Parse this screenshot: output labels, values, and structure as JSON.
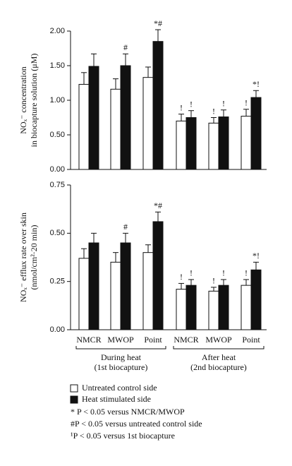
{
  "chart_data": [
    {
      "type": "bar",
      "y_label": [
        "NOₓ⁻ concentration",
        "in biocapture solution (μM)"
      ],
      "ylim": [
        0,
        2
      ],
      "yticks": [
        {
          "value": 0,
          "label": "0.00"
        },
        {
          "value": 0.5,
          "label": "0.50"
        },
        {
          "value": 1,
          "label": "1.00"
        },
        {
          "value": 1.5,
          "label": "1.50"
        },
        {
          "value": 2,
          "label": "2.00"
        }
      ],
      "series": [
        {
          "color": "#ffffff",
          "values": [
            1.23,
            1.16,
            1.33,
            0.7,
            0.67,
            0.77
          ],
          "errors": [
            0.17,
            0.15,
            0.15,
            0.1,
            0.08,
            0.1
          ],
          "annotations": [
            null,
            null,
            null,
            "!",
            "!",
            "!"
          ]
        },
        {
          "color": "#111111",
          "values": [
            1.49,
            1.5,
            1.85,
            0.75,
            0.76,
            1.04
          ],
          "errors": [
            0.18,
            0.17,
            0.17,
            0.1,
            0.1,
            0.1
          ],
          "annotations": [
            null,
            "#",
            "*#",
            "!",
            "!",
            "*!"
          ]
        }
      ]
    },
    {
      "type": "bar",
      "y_label": [
        "NOₓ⁻ efflux rate over skin",
        "(nmol/cm²·20 min)"
      ],
      "categories": [
        "NMCR",
        "MWOP",
        "Point",
        "NMCR",
        "MWOP",
        "Point"
      ],
      "groups": [
        [
          "During heat",
          "(1st biocapture)"
        ],
        [
          "After heat",
          "(2nd biocapture)"
        ]
      ],
      "ylim": [
        0,
        0.75
      ],
      "yticks": [
        {
          "value": 0,
          "label": "0.00"
        },
        {
          "value": 0.25,
          "label": "0.25"
        },
        {
          "value": 0.5,
          "label": "0.50"
        },
        {
          "value": 0.75,
          "label": "0.75"
        }
      ],
      "series": [
        {
          "name": "Untreated control side",
          "color": "#ffffff",
          "values": [
            0.37,
            0.35,
            0.4,
            0.21,
            0.2,
            0.23
          ],
          "errors": [
            0.05,
            0.05,
            0.04,
            0.03,
            0.02,
            0.03
          ],
          "annotations": [
            null,
            null,
            null,
            "!",
            "!",
            "!"
          ]
        },
        {
          "name": "Heat stimulated side",
          "color": "#111111",
          "values": [
            0.45,
            0.45,
            0.56,
            0.23,
            0.23,
            0.31
          ],
          "errors": [
            0.05,
            0.05,
            0.05,
            0.03,
            0.03,
            0.04
          ],
          "annotations": [
            null,
            "#",
            "*#",
            "!",
            "!",
            "*!"
          ]
        }
      ],
      "notes": [
        "* P < 0.05 versus NMCR/MWOP",
        "#P < 0.05 versus untreated control side",
        "¹P < 0.05 versus 1st biocapture"
      ]
    }
  ]
}
